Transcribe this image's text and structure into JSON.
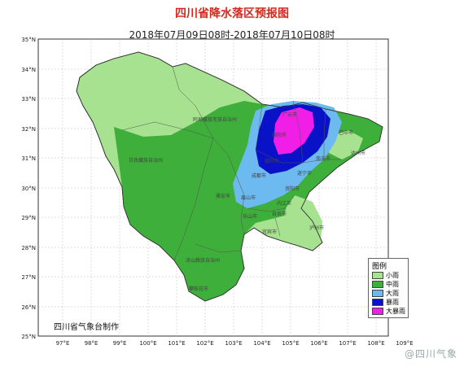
{
  "title": "四川省降水落区预报图",
  "subtitle": "2018年07月09日08时-2018年07月10日08时",
  "credit": "四川省气象台制作",
  "watermark": "@四川气象",
  "lat_labels": [
    "35°N",
    "34°N",
    "33°N",
    "32°N",
    "31°N",
    "30°N",
    "29°N",
    "28°N",
    "27°N",
    "26°N",
    "25°N"
  ],
  "lon_labels": [
    "97°E",
    "98°E",
    "99°E",
    "100°E",
    "101°E",
    "102°E",
    "103°E",
    "104°E",
    "105°E",
    "106°E",
    "107°E",
    "108°E",
    "109°E"
  ],
  "legend": {
    "title": "图例",
    "items": [
      {
        "label": "小雨",
        "color": "#a6e28f"
      },
      {
        "label": "中雨",
        "color": "#3eaf3a"
      },
      {
        "label": "大雨",
        "color": "#6cbaf0"
      },
      {
        "label": "暴雨",
        "color": "#0a12c8"
      },
      {
        "label": "大暴雨",
        "color": "#f01ee6"
      }
    ]
  },
  "places": [
    {
      "name": "阿坝藏族羌族自治州"
    },
    {
      "name": "广元市"
    },
    {
      "name": "绵阳市"
    },
    {
      "name": "巴中市"
    },
    {
      "name": "达州市"
    },
    {
      "name": "甘孜藏族自治州"
    },
    {
      "name": "南充市"
    },
    {
      "name": "德阳市"
    },
    {
      "name": "遂宁市"
    },
    {
      "name": "成都市"
    },
    {
      "name": "资阳市"
    },
    {
      "name": "雅安市"
    },
    {
      "name": "眉山市"
    },
    {
      "name": "内江市"
    },
    {
      "name": "乐山市"
    },
    {
      "name": "自贡市"
    },
    {
      "name": "宜宾市"
    },
    {
      "name": "泸州市"
    },
    {
      "name": "凉山彝族自治州"
    },
    {
      "name": "攀枝花市"
    }
  ]
}
